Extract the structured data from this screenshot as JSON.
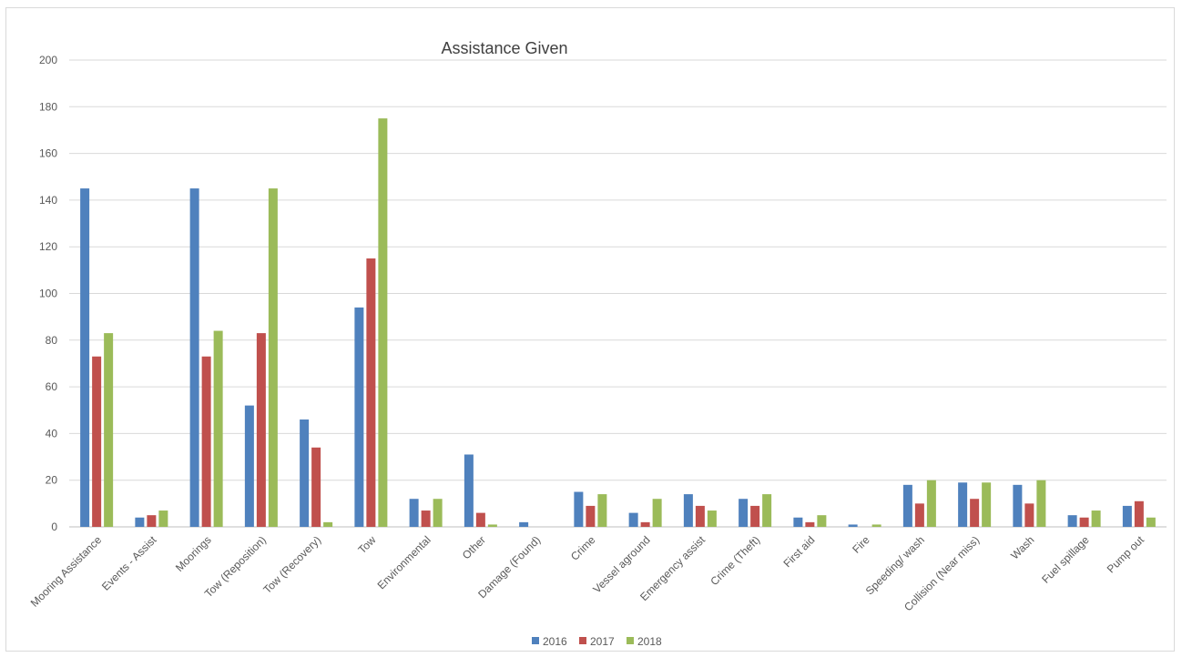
{
  "chart_data": {
    "type": "bar",
    "title": "Assistance Given",
    "xlabel": "",
    "ylabel": "",
    "ylim": [
      0,
      200
    ],
    "yticks": [
      0,
      20,
      40,
      60,
      80,
      100,
      120,
      140,
      160,
      180,
      200
    ],
    "grid": true,
    "legend_position": "bottom",
    "categories": [
      "Mooring Assistance",
      "Events - Assist",
      "Moorings",
      "Tow (Reposition)",
      "Tow (Recovery)",
      "Tow",
      "Environmental",
      "Other",
      "Damage (Found)",
      "Crime",
      "Vessel aground",
      "Emergency assist",
      "Crime (Theft)",
      "First aid",
      "Fire",
      "Speeding/ wash",
      "Collision (Near miss)",
      "Wash",
      "Fuel spillage",
      "Pump out"
    ],
    "series": [
      {
        "name": "2016",
        "color": "#4f81bd",
        "values": [
          145,
          4,
          145,
          52,
          46,
          94,
          12,
          31,
          2,
          15,
          6,
          14,
          12,
          4,
          1,
          18,
          19,
          18,
          5,
          9
        ]
      },
      {
        "name": "2017",
        "color": "#c0504d",
        "values": [
          73,
          5,
          73,
          83,
          34,
          115,
          7,
          6,
          0,
          9,
          2,
          9,
          9,
          2,
          0,
          10,
          12,
          10,
          4,
          11
        ]
      },
      {
        "name": "2018",
        "color": "#9bbb59",
        "values": [
          83,
          7,
          84,
          145,
          2,
          175,
          12,
          1,
          0,
          14,
          12,
          7,
          14,
          5,
          1,
          20,
          19,
          20,
          7,
          4
        ]
      }
    ]
  }
}
